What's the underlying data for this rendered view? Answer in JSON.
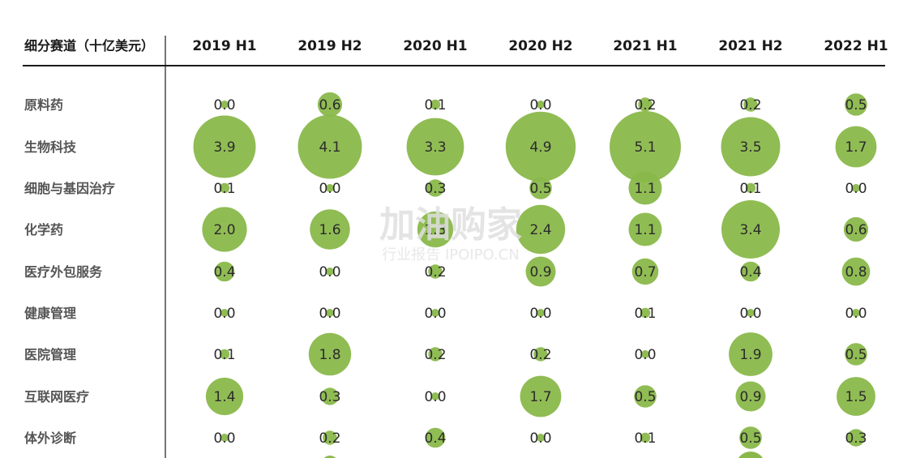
{
  "chart_data": {
    "type": "bubble-table",
    "row_header": "细分赛道（十亿美元）",
    "columns": [
      "2019 H1",
      "2019 H2",
      "2020 H1",
      "2020 H2",
      "2021 H1",
      "2021 H2",
      "2022 H1"
    ],
    "rows": [
      {
        "label": "原料药",
        "values": [
          0.0,
          0.6,
          0.1,
          0.0,
          0.2,
          0.2,
          0.5
        ]
      },
      {
        "label": "生物科技",
        "values": [
          3.9,
          4.1,
          3.3,
          4.9,
          5.1,
          3.5,
          1.7
        ]
      },
      {
        "label": "细胞与基因治疗",
        "values": [
          0.1,
          0.0,
          0.3,
          0.5,
          1.1,
          0.1,
          0.0
        ]
      },
      {
        "label": "化学药",
        "values": [
          2.0,
          1.6,
          1.3,
          2.4,
          1.1,
          3.4,
          0.6
        ]
      },
      {
        "label": "医疗外包服务",
        "values": [
          0.4,
          0.0,
          0.2,
          0.9,
          0.7,
          0.4,
          0.8
        ]
      },
      {
        "label": "健康管理",
        "values": [
          0.0,
          0.0,
          0.0,
          0.0,
          0.1,
          0.0,
          0.0
        ]
      },
      {
        "label": "医院管理",
        "values": [
          0.1,
          1.8,
          0.2,
          0.2,
          0.0,
          1.9,
          0.5
        ]
      },
      {
        "label": "互联网医疗",
        "values": [
          1.4,
          0.3,
          0.0,
          1.7,
          0.5,
          0.9,
          1.5
        ]
      },
      {
        "label": "体外诊断",
        "values": [
          0.0,
          0.2,
          0.4,
          0.0,
          0.1,
          0.5,
          0.3
        ]
      }
    ],
    "colors": {
      "bubble": "#8ab84b",
      "bubble_dark": "#6f9a3a",
      "text": "#2b2b2b"
    }
  },
  "watermark": {
    "main": "加油购家",
    "sub": "行业报告 IPOIPO.CN"
  }
}
